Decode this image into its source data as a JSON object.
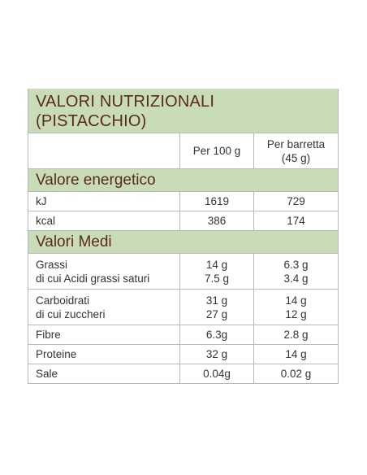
{
  "title": {
    "line1": "VALORI NUTRIZIONALI",
    "line2": "(PISTACCHIO)"
  },
  "columns": {
    "per100": "Per 100 g",
    "perbar_line1": "Per barretta",
    "perbar_line2": "(45 g)"
  },
  "sections": {
    "energy": "Valore energetico",
    "medi": "Valori Medi"
  },
  "energy_rows": [
    {
      "label": "kJ",
      "per100": "1619",
      "perbar": "729"
    },
    {
      "label": "kcal",
      "per100": "386",
      "perbar": "174"
    }
  ],
  "grassi": {
    "label1": "Grassi",
    "label2": "di cui Acidi grassi saturi",
    "per100_1": "14 g",
    "per100_2": "7.5 g",
    "perbar_1": "6.3 g",
    "perbar_2": "3.4 g"
  },
  "carbo": {
    "label1": "Carboidrati",
    "label2": "di cui zuccheri",
    "per100_1": "31 g",
    "per100_2": "27 g",
    "perbar_1": "14 g",
    "perbar_2": "12 g"
  },
  "simple_rows": [
    {
      "label": "Fibre",
      "per100": "6.3g",
      "perbar": "2.8 g"
    },
    {
      "label": "Proteine",
      "per100": "32 g",
      "perbar": "14 g"
    },
    {
      "label": "Sale",
      "per100": "0.04g",
      "perbar": "0.02 g"
    }
  ],
  "colors": {
    "band": "#c9dcb8",
    "heading_text": "#5a2a1c",
    "border": "#b8b8b8"
  }
}
